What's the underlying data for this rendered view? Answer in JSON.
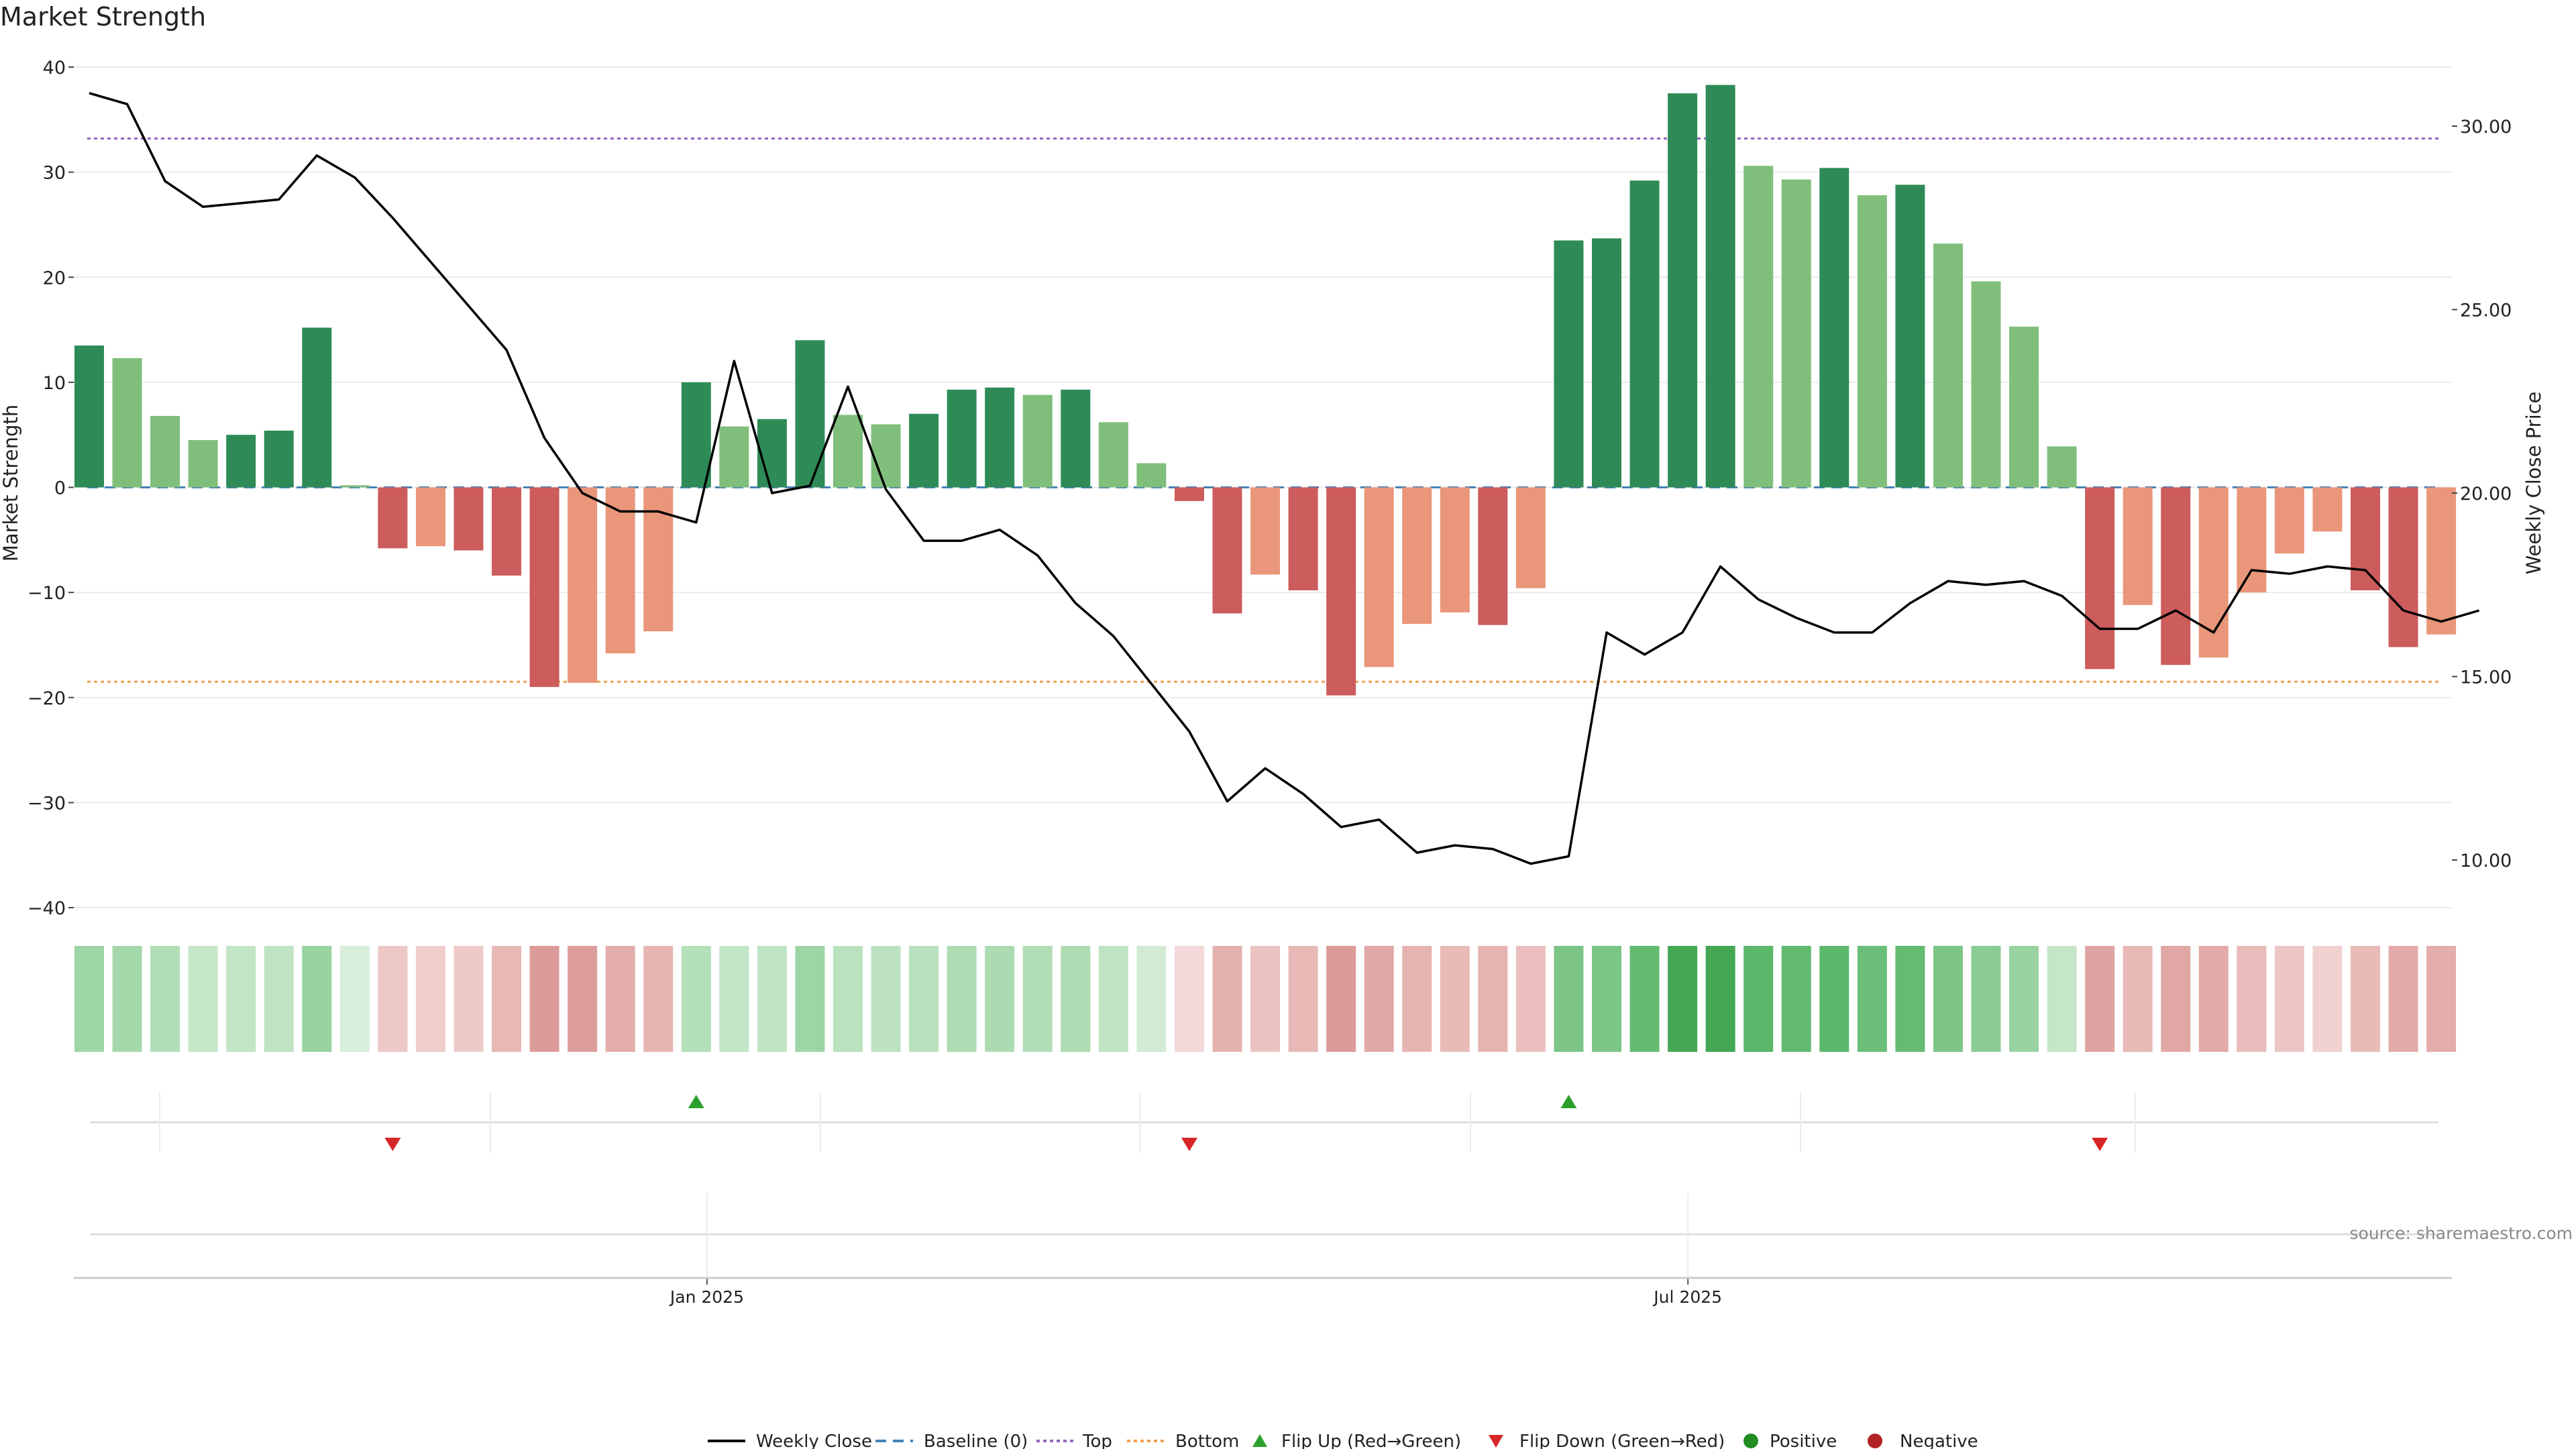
{
  "chart_data": {
    "type": "bar",
    "title": "Market Strength",
    "ylabel_left": "Market Strength",
    "ylabel_right": "Weekly Close Price",
    "ylim_left": [
      -42,
      40
    ],
    "yticks_left": [
      40,
      30,
      20,
      10,
      0,
      -10,
      -20,
      -30,
      -40
    ],
    "yticks_left_labels": [
      "40",
      "30",
      "20",
      "10",
      "0",
      "−10",
      "−20",
      "−30",
      "−40"
    ],
    "ylim_right": [
      8.985,
      31.5
    ],
    "yticks_right": [
      30,
      25,
      20,
      15,
      10
    ],
    "yticks_right_labels": [
      "30.00",
      "25.00",
      "20.00",
      "15.00",
      "10.00"
    ],
    "x_start": "2024-09-09",
    "x_step_days": 7,
    "x_tick_labels": [
      {
        "date": "2025-01-01",
        "label": "Jan 2025"
      },
      {
        "date": "2025-07-01",
        "label": "Jul 2025"
      }
    ],
    "top_line": 33.2,
    "bottom_line": -18.5,
    "values": [
      13.5,
      12.3,
      6.8,
      4.5,
      5.0,
      5.4,
      15.2,
      0.2,
      -5.8,
      -5.6,
      -6.0,
      -8.4,
      -19.0,
      -18.6,
      -15.8,
      -13.7,
      10.0,
      5.8,
      6.5,
      14.0,
      6.9,
      6.0,
      7.0,
      9.3,
      9.5,
      8.8,
      9.3,
      6.2,
      2.3,
      -1.3,
      -12.0,
      -8.3,
      -9.8,
      -19.8,
      -17.1,
      -13.0,
      -11.9,
      -13.1,
      -9.6,
      23.5,
      23.7,
      29.2,
      37.5,
      38.3,
      30.6,
      29.3,
      30.4,
      27.8,
      28.8,
      23.2,
      19.6,
      15.3,
      3.9,
      -17.3,
      -11.2,
      -16.9,
      -16.2,
      -10.0,
      -6.3,
      -4.2,
      -9.8,
      -15.2,
      -14.0
    ],
    "bar_shades": [
      "dark",
      "light",
      "light",
      "light",
      "dark",
      "dark",
      "dark",
      "light",
      "dark",
      "light",
      "dark",
      "dark",
      "dark",
      "light",
      "light",
      "light",
      "dark",
      "light",
      "dark",
      "dark",
      "light",
      "light",
      "dark",
      "dark",
      "dark",
      "light",
      "dark",
      "light",
      "light",
      "dark",
      "dark",
      "light",
      "dark",
      "dark",
      "light",
      "light",
      "light",
      "dark",
      "light",
      "dark",
      "dark",
      "dark",
      "dark",
      "dark",
      "light",
      "light",
      "dark",
      "light",
      "dark",
      "light",
      "light",
      "light",
      "light",
      "dark",
      "light",
      "dark",
      "light",
      "light",
      "light",
      "light",
      "dark",
      "dark",
      "light"
    ],
    "weekly_close": [
      30.9,
      30.6,
      28.5,
      27.8,
      27.9,
      28.0,
      29.2,
      28.6,
      27.5,
      26.3,
      25.1,
      23.9,
      21.5,
      20.0,
      19.5,
      19.5,
      19.2,
      23.6,
      20.0,
      20.2,
      22.9,
      20.1,
      18.7,
      18.7,
      19.0,
      18.3,
      17.0,
      16.1,
      14.8,
      13.5,
      11.6,
      12.5,
      11.8,
      10.9,
      11.1,
      10.2,
      10.4,
      10.3,
      9.9,
      10.1,
      16.2,
      15.6,
      16.2,
      18.0,
      17.1,
      16.6,
      16.2,
      16.2,
      17.0,
      17.6,
      17.5,
      17.6,
      17.2,
      16.3,
      16.3,
      16.8,
      16.2,
      17.9,
      17.8,
      18.0,
      17.9,
      16.8,
      16.5,
      16.8
    ],
    "strip_colors": [
      "#9ed5a6",
      "#a4d8ab",
      "#b2deb7",
      "#c5e6c8",
      "#c1e5c5",
      "#bfe3c3",
      "#98d3a1",
      "#d9eedb",
      "#ecc8c7",
      "#eecdcb",
      "#edcac8",
      "#e7b8b6",
      "#dc9b99",
      "#dd9e9b",
      "#e3aeac",
      "#e6b5b2",
      "#b3dfb9",
      "#c3e5c7",
      "#bfe3c3",
      "#9ed5a6",
      "#bae2bf",
      "#bde2c1",
      "#b9e1be",
      "#aedcb3",
      "#acdbb2",
      "#b1ddb6",
      "#aedcb3",
      "#bfe3c3",
      "#d2ead3",
      "#f3d9da",
      "#e4b1af",
      "#eac3c1",
      "#e7b8b6",
      "#dc9b99",
      "#e0a8a6",
      "#e5b3b1",
      "#e8bbb9",
      "#e5b3b1",
      "#eabfbd",
      "#7cc587",
      "#7bc586",
      "#62bb71",
      "#45a854",
      "#43a653",
      "#5bb76a",
      "#62ba70",
      "#5cb86b",
      "#6bbe78",
      "#64bb72",
      "#7cc587",
      "#8acc93",
      "#99d3a2",
      "#c6e6c9",
      "#dfa4a2",
      "#e7b9b7",
      "#e0a7a4",
      "#e2aba8",
      "#e8bcba",
      "#ecc6c4",
      "#efd2d0",
      "#e8bbb9",
      "#e2aba9",
      "#e3aeac"
    ],
    "flip_up_indices": [
      16,
      39
    ],
    "flip_down_indices": [
      8,
      29,
      53
    ],
    "legend": [
      "Weekly Close",
      "Baseline (0)",
      "Top",
      "Bottom",
      "Flip Up (Red→Green)",
      "Flip Down (Green→Red)",
      "Positive",
      "Negative"
    ],
    "colors": {
      "pos_dark": "#2e8b57",
      "pos_light": "#7fbf7b",
      "neg_dark": "#cd5c5c",
      "neg_light": "#e9967a",
      "top": "#9467bd",
      "bottom": "#f0a050",
      "baseline": "#4682b4",
      "close": "#000000",
      "flip_up": "#2ca02c",
      "flip_down": "#d62728",
      "positive_dot": "#228b22",
      "negative_dot": "#b22222"
    }
  },
  "source_text": "source: sharemaestro.com"
}
